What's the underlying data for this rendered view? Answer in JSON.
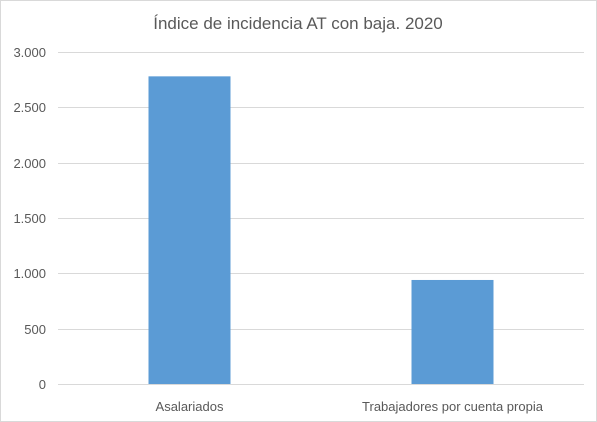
{
  "chart_data": {
    "type": "bar",
    "title": "Índice de incidencia AT con baja. 2020",
    "categories": [
      "Asalariados",
      "Trabajadores por cuenta propia"
    ],
    "values": [
      2780,
      940
    ],
    "ylim": [
      0,
      3000
    ],
    "yticks": [
      0,
      500,
      1000,
      1500,
      2000,
      2500,
      3000
    ],
    "ytick_labels": [
      "0",
      "500",
      "1.000",
      "1.500",
      "2.000",
      "2.500",
      "3.000"
    ],
    "xlabel": "",
    "ylabel": "",
    "grid": true,
    "legend": "none",
    "bar_color": "#5b9bd5"
  }
}
